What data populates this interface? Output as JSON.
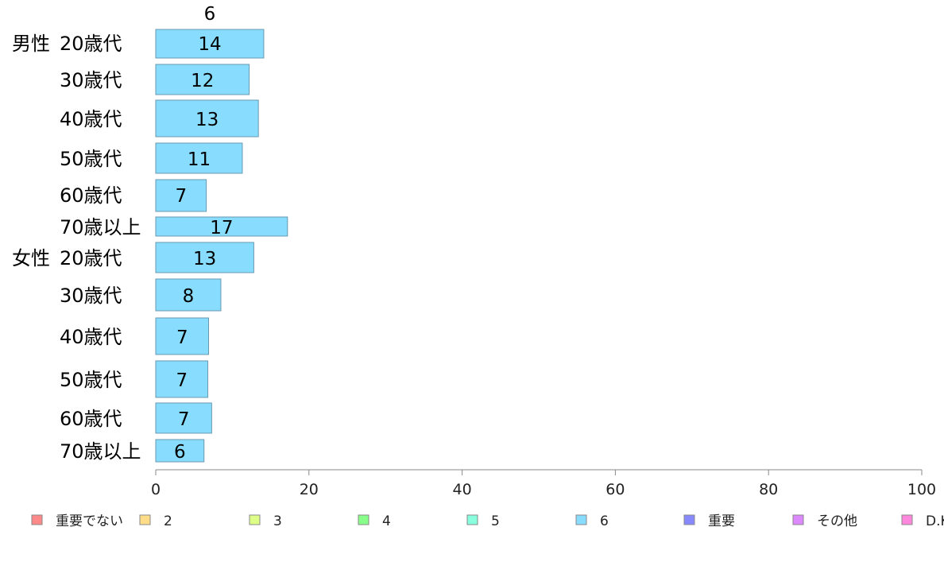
{
  "chart_data": {
    "type": "bar",
    "orientation": "horizontal",
    "stacked": true,
    "top_label": "6",
    "groups": [
      {
        "name": "男性",
        "rows": [
          {
            "category": "20歳代",
            "value": 14
          },
          {
            "category": "30歳代",
            "value": 12
          },
          {
            "category": "40歳代",
            "value": 13
          },
          {
            "category": "50歳代",
            "value": 11
          },
          {
            "category": "60歳代",
            "value": 7
          },
          {
            "category": "70歳以上",
            "value": 17
          }
        ]
      },
      {
        "name": "女性",
        "rows": [
          {
            "category": "20歳代",
            "value": 13
          },
          {
            "category": "30歳代",
            "value": 8
          },
          {
            "category": "40歳代",
            "value": 7
          },
          {
            "category": "50歳代",
            "value": 7
          },
          {
            "category": "60歳代",
            "value": 7
          },
          {
            "category": "70歳以上",
            "value": 6
          }
        ]
      }
    ],
    "precise_values": [
      14.1,
      12.2,
      13.4,
      11.3,
      6.6,
      17.2,
      12.8,
      8.5,
      6.9,
      6.8,
      7.3,
      6.3
    ],
    "shown_series": "6",
    "bar_color": "#88ddff",
    "bar_border": "#6a98b0",
    "xlim": [
      0,
      100
    ],
    "xticks": [
      0,
      20,
      40,
      60,
      80,
      100
    ],
    "grid": false,
    "legend_position": "bottom",
    "legend": [
      {
        "name": "重要でない",
        "color": "#ff8888"
      },
      {
        "name": "2",
        "color": "#ffdd88"
      },
      {
        "name": "3",
        "color": "#ddff88"
      },
      {
        "name": "4",
        "color": "#88ff88"
      },
      {
        "name": "5",
        "color": "#88ffdd"
      },
      {
        "name": "6",
        "color": "#88ddff"
      },
      {
        "name": "重要",
        "color": "#8888ff"
      },
      {
        "name": "その他",
        "color": "#dd88ff"
      },
      {
        "name": "D.K",
        "color": "#ff88dd"
      }
    ]
  }
}
